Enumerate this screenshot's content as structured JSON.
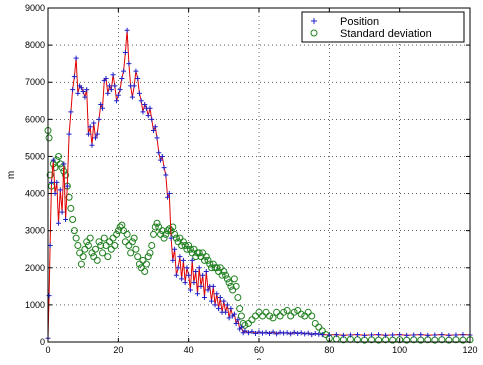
{
  "chart_data": {
    "type": "line",
    "title": "",
    "xlabel": "s",
    "ylabel": "m",
    "xlim": [
      0,
      120
    ],
    "ylim": [
      0,
      9000
    ],
    "grid": true,
    "legend_position": "top-right",
    "x_ticks": [
      0,
      20,
      40,
      60,
      80,
      100,
      120
    ],
    "y_ticks": [
      0,
      1000,
      2000,
      3000,
      4000,
      5000,
      6000,
      7000,
      8000,
      9000
    ],
    "series": [
      {
        "name": "Position",
        "marker": "+",
        "marker_color": "#2020c8",
        "line_color": "#e00000",
        "points": [
          [
            0,
            100
          ],
          [
            0.3,
            1250
          ],
          [
            0.6,
            2600
          ],
          [
            1,
            4300
          ],
          [
            1.5,
            4900
          ],
          [
            2,
            4000
          ],
          [
            2.5,
            4300
          ],
          [
            3,
            3200
          ],
          [
            3.5,
            4100
          ],
          [
            4,
            3500
          ],
          [
            4.5,
            4800
          ],
          [
            5,
            3300
          ],
          [
            5.5,
            4200
          ],
          [
            6,
            5600
          ],
          [
            6.5,
            6200
          ],
          [
            7,
            6800
          ],
          [
            7.5,
            7150
          ],
          [
            8,
            7650
          ],
          [
            8.5,
            6700
          ],
          [
            9,
            6900
          ],
          [
            9.5,
            6850
          ],
          [
            10,
            6750
          ],
          [
            10.5,
            6600
          ],
          [
            11,
            6800
          ],
          [
            11.5,
            5600
          ],
          [
            12,
            5800
          ],
          [
            12.5,
            5300
          ],
          [
            13,
            5900
          ],
          [
            13.5,
            5500
          ],
          [
            14,
            5600
          ],
          [
            14.5,
            6000
          ],
          [
            15,
            6400
          ],
          [
            15.5,
            6300
          ],
          [
            16,
            7050
          ],
          [
            16.5,
            7100
          ],
          [
            17,
            6700
          ],
          [
            17.5,
            6900
          ],
          [
            18,
            6800
          ],
          [
            18.5,
            7200
          ],
          [
            19,
            6900
          ],
          [
            19.5,
            6500
          ],
          [
            20,
            6650
          ],
          [
            20.5,
            6800
          ],
          [
            21,
            7100
          ],
          [
            21.5,
            7300
          ],
          [
            22,
            7800
          ],
          [
            22.5,
            8400
          ],
          [
            23,
            7500
          ],
          [
            23.5,
            6900
          ],
          [
            24,
            6600
          ],
          [
            24.5,
            6900
          ],
          [
            25,
            7300
          ],
          [
            25.5,
            7100
          ],
          [
            26,
            6700
          ],
          [
            26.5,
            6500
          ],
          [
            27,
            6200
          ],
          [
            27.5,
            6400
          ],
          [
            28,
            6300
          ],
          [
            28.5,
            6100
          ],
          [
            29,
            6300
          ],
          [
            29.5,
            6000
          ],
          [
            30,
            5700
          ],
          [
            30.5,
            5800
          ],
          [
            31,
            5500
          ],
          [
            31.5,
            5100
          ],
          [
            32,
            4900
          ],
          [
            32.5,
            5000
          ],
          [
            33,
            4700
          ],
          [
            33.5,
            4500
          ],
          [
            34,
            3900
          ],
          [
            34.5,
            4000
          ],
          [
            35,
            2800
          ],
          [
            35.5,
            2200
          ],
          [
            36,
            2500
          ],
          [
            36.5,
            1800
          ],
          [
            37,
            2000
          ],
          [
            37.5,
            2300
          ],
          [
            38,
            1700
          ],
          [
            38.5,
            2200
          ],
          [
            39,
            1600
          ],
          [
            39.5,
            2000
          ],
          [
            40,
            1800
          ],
          [
            40.5,
            1400
          ],
          [
            41,
            2200
          ],
          [
            41.5,
            1600
          ],
          [
            42,
            1900
          ],
          [
            42.5,
            1300
          ],
          [
            43,
            2000
          ],
          [
            43.5,
            1500
          ],
          [
            44,
            1800
          ],
          [
            44.5,
            1200
          ],
          [
            45,
            1900
          ],
          [
            45.5,
            1400
          ],
          [
            46,
            1500
          ],
          [
            46.5,
            1100
          ],
          [
            47,
            1500
          ],
          [
            47.5,
            1000
          ],
          [
            48,
            1300
          ],
          [
            48.5,
            900
          ],
          [
            49,
            1200
          ],
          [
            49.5,
            800
          ],
          [
            50,
            1100
          ],
          [
            50.5,
            800
          ],
          [
            51,
            1000
          ],
          [
            51.5,
            650
          ],
          [
            52,
            900
          ],
          [
            52.5,
            700
          ],
          [
            53,
            750
          ],
          [
            53.5,
            500
          ],
          [
            54,
            600
          ],
          [
            54.5,
            350
          ],
          [
            55,
            400
          ],
          [
            55.5,
            250
          ],
          [
            56,
            300
          ],
          [
            57,
            250
          ],
          [
            58,
            280
          ],
          [
            59,
            230
          ],
          [
            60,
            270
          ],
          [
            61,
            240
          ],
          [
            62,
            260
          ],
          [
            63,
            230
          ],
          [
            64,
            270
          ],
          [
            65,
            220
          ],
          [
            66,
            260
          ],
          [
            67,
            240
          ],
          [
            68,
            250
          ],
          [
            69,
            220
          ],
          [
            70,
            260
          ],
          [
            71,
            230
          ],
          [
            72,
            250
          ],
          [
            73,
            220
          ],
          [
            74,
            240
          ],
          [
            75,
            200
          ],
          [
            76,
            230
          ],
          [
            77,
            210
          ],
          [
            78,
            200
          ],
          [
            80,
            190
          ],
          [
            82,
            200
          ],
          [
            84,
            180
          ],
          [
            86,
            190
          ],
          [
            88,
            200
          ],
          [
            90,
            180
          ],
          [
            92,
            190
          ],
          [
            94,
            200
          ],
          [
            96,
            180
          ],
          [
            98,
            190
          ],
          [
            100,
            200
          ],
          [
            102,
            180
          ],
          [
            104,
            190
          ],
          [
            106,
            200
          ],
          [
            108,
            180
          ],
          [
            110,
            190
          ],
          [
            112,
            200
          ],
          [
            114,
            180
          ],
          [
            116,
            190
          ],
          [
            118,
            200
          ],
          [
            120,
            190
          ]
        ]
      },
      {
        "name": "Standard deviation",
        "marker": "o",
        "marker_color": "#208020",
        "points": [
          [
            0,
            5700
          ],
          [
            0.3,
            5500
          ],
          [
            0.6,
            4500
          ],
          [
            1,
            4200
          ],
          [
            1.5,
            4800
          ],
          [
            2,
            4700
          ],
          [
            2.5,
            4900
          ],
          [
            3,
            5000
          ],
          [
            3.5,
            4800
          ],
          [
            4,
            4700
          ],
          [
            4.5,
            4600
          ],
          [
            5,
            4500
          ],
          [
            5.5,
            4200
          ],
          [
            6,
            3900
          ],
          [
            6.5,
            3600
          ],
          [
            7,
            3300
          ],
          [
            7.5,
            3000
          ],
          [
            8,
            2800
          ],
          [
            8.5,
            2600
          ],
          [
            9,
            2400
          ],
          [
            9.5,
            2100
          ],
          [
            10,
            2300
          ],
          [
            10.5,
            2500
          ],
          [
            11,
            2700
          ],
          [
            11.5,
            2600
          ],
          [
            12,
            2800
          ],
          [
            12.5,
            2400
          ],
          [
            13,
            2300
          ],
          [
            13.5,
            2500
          ],
          [
            14,
            2200
          ],
          [
            14.5,
            2700
          ],
          [
            15,
            2600
          ],
          [
            15.5,
            2400
          ],
          [
            16,
            2800
          ],
          [
            16.5,
            2600
          ],
          [
            17,
            2300
          ],
          [
            17.5,
            2700
          ],
          [
            18,
            2500
          ],
          [
            18.5,
            2800
          ],
          [
            19,
            2600
          ],
          [
            19.5,
            2900
          ],
          [
            20,
            3000
          ],
          [
            20.5,
            3100
          ],
          [
            21,
            3150
          ],
          [
            21.5,
            3000
          ],
          [
            22,
            2700
          ],
          [
            22.5,
            2900
          ],
          [
            23,
            2600
          ],
          [
            23.5,
            2400
          ],
          [
            24,
            2700
          ],
          [
            24.5,
            2800
          ],
          [
            25,
            2500
          ],
          [
            25.5,
            2300
          ],
          [
            26,
            2100
          ],
          [
            26.5,
            2000
          ],
          [
            27,
            2200
          ],
          [
            27.5,
            1900
          ],
          [
            28,
            2100
          ],
          [
            28.5,
            2300
          ],
          [
            29,
            2400
          ],
          [
            29.5,
            2600
          ],
          [
            30,
            2900
          ],
          [
            30.5,
            3100
          ],
          [
            31,
            3200
          ],
          [
            31.5,
            3100
          ],
          [
            32,
            2900
          ],
          [
            32.5,
            3000
          ],
          [
            33,
            2800
          ],
          [
            33.5,
            2900
          ],
          [
            34,
            3000
          ],
          [
            34.5,
            3050
          ],
          [
            35,
            3000
          ],
          [
            35.5,
            3100
          ],
          [
            36,
            2900
          ],
          [
            36.5,
            2800
          ],
          [
            37,
            2700
          ],
          [
            37.5,
            2800
          ],
          [
            38,
            2600
          ],
          [
            38.5,
            2700
          ],
          [
            39,
            2600
          ],
          [
            39.5,
            2500
          ],
          [
            40,
            2600
          ],
          [
            40.5,
            2500
          ],
          [
            41,
            2400
          ],
          [
            41.5,
            2500
          ],
          [
            42,
            2300
          ],
          [
            42.5,
            2400
          ],
          [
            43,
            2400
          ],
          [
            43.5,
            2300
          ],
          [
            44,
            2400
          ],
          [
            44.5,
            2200
          ],
          [
            45,
            2300
          ],
          [
            45.5,
            2200
          ],
          [
            46,
            2100
          ],
          [
            46.5,
            2000
          ],
          [
            47,
            2100
          ],
          [
            47.5,
            2000
          ],
          [
            48,
            2000
          ],
          [
            48.5,
            1900
          ],
          [
            49,
            2000
          ],
          [
            49.5,
            1800
          ],
          [
            50,
            1900
          ],
          [
            50.5,
            1800
          ],
          [
            51,
            1700
          ],
          [
            51.5,
            1600
          ],
          [
            52,
            1500
          ],
          [
            52.5,
            1400
          ],
          [
            53,
            1700
          ],
          [
            53.5,
            1500
          ],
          [
            54,
            1200
          ],
          [
            54.5,
            900
          ],
          [
            55,
            700
          ],
          [
            55.5,
            500
          ],
          [
            56,
            450
          ],
          [
            57,
            500
          ],
          [
            58,
            600
          ],
          [
            59,
            700
          ],
          [
            60,
            800
          ],
          [
            61,
            700
          ],
          [
            62,
            800
          ],
          [
            63,
            700
          ],
          [
            64,
            650
          ],
          [
            65,
            800
          ],
          [
            66,
            700
          ],
          [
            67,
            800
          ],
          [
            68,
            850
          ],
          [
            69,
            700
          ],
          [
            70,
            800
          ],
          [
            71,
            850
          ],
          [
            72,
            750
          ],
          [
            73,
            700
          ],
          [
            74,
            800
          ],
          [
            75,
            700
          ],
          [
            76,
            500
          ],
          [
            77,
            400
          ],
          [
            78,
            300
          ],
          [
            79,
            200
          ],
          [
            80,
            100
          ],
          [
            82,
            80
          ],
          [
            84,
            60
          ],
          [
            86,
            70
          ],
          [
            88,
            60
          ],
          [
            90,
            50
          ],
          [
            92,
            60
          ],
          [
            94,
            50
          ],
          [
            96,
            60
          ],
          [
            98,
            50
          ],
          [
            100,
            60
          ],
          [
            102,
            50
          ],
          [
            104,
            60
          ],
          [
            106,
            50
          ],
          [
            108,
            60
          ],
          [
            110,
            50
          ],
          [
            112,
            60
          ],
          [
            114,
            50
          ],
          [
            116,
            60
          ],
          [
            118,
            50
          ],
          [
            120,
            60
          ]
        ]
      }
    ]
  }
}
